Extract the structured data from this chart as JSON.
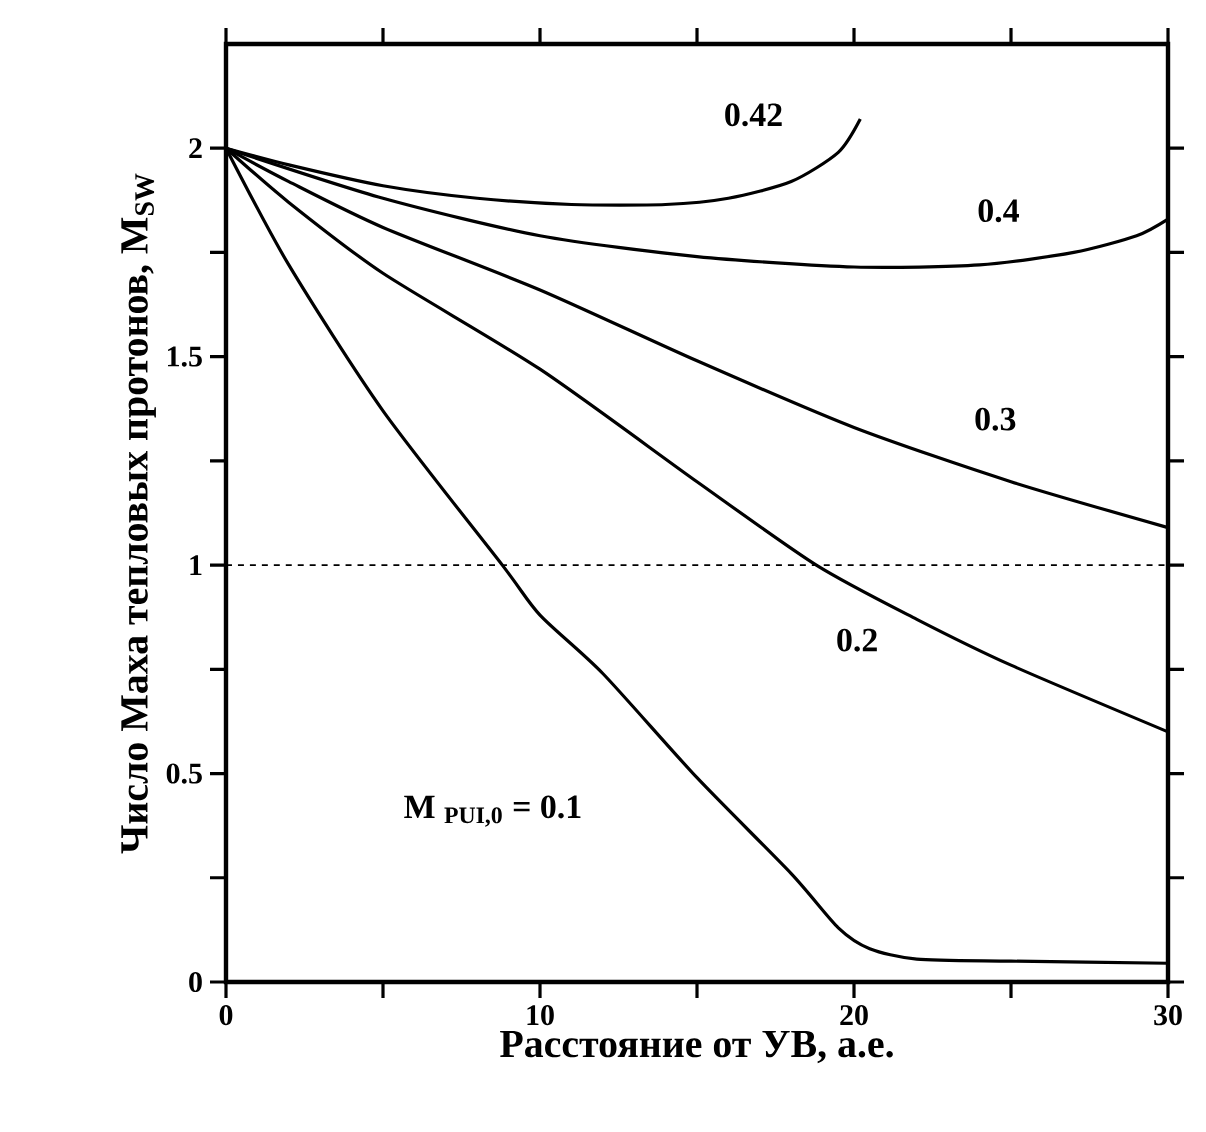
{
  "chart_data": {
    "type": "line",
    "xlabel": "Расстояние от УВ, а.е.",
    "ylabel": "Число Маха тепловых протонов, M$_{SW}$",
    "xlim": [
      0,
      30
    ],
    "ylim": [
      0,
      2.25
    ],
    "xticks": [
      0,
      {
        "value": 5,
        "label": null
      },
      10,
      {
        "value": 15,
        "label": null
      },
      20,
      {
        "value": 25,
        "label": null
      },
      30
    ],
    "yticks": [
      0,
      {
        "value": 0.25,
        "label": null
      },
      0.5,
      {
        "value": 0.75,
        "label": null
      },
      1,
      {
        "value": 1.25,
        "label": null
      },
      1.5,
      {
        "value": 1.75,
        "label": null
      },
      2
    ],
    "marker": "none",
    "line_style": "solid",
    "ref_lines": [
      {
        "axis": "y",
        "value": 1,
        "label": null,
        "line_style": "dashed",
        "color": "#000000"
      }
    ],
    "series": [
      {
        "name": "M $_{PUI,0}$ = 0.1",
        "color": "#000000",
        "x": [
          0,
          2,
          5,
          8.8,
          10,
          12,
          15,
          18,
          19.5,
          20.5,
          22,
          25,
          30
        ],
        "values": [
          2,
          1.72,
          1.37,
          1.0,
          0.88,
          0.74,
          0.49,
          0.26,
          0.13,
          0.08,
          0.055,
          0.05,
          0.045
        ]
      },
      {
        "name": "0.2",
        "color": "#000000",
        "x": [
          0,
          2,
          5,
          10,
          15,
          18.8,
          22,
          25,
          30
        ],
        "values": [
          2,
          1.87,
          1.7,
          1.47,
          1.2,
          1.0,
          0.87,
          0.76,
          0.6
        ]
      },
      {
        "name": "0.3",
        "color": "#000000",
        "x": [
          0,
          2,
          5,
          10,
          15,
          20,
          25,
          30
        ],
        "values": [
          2,
          1.92,
          1.81,
          1.66,
          1.49,
          1.33,
          1.2,
          1.09
        ]
      },
      {
        "name": "0.4",
        "color": "#000000",
        "x": [
          0,
          5,
          10,
          15,
          20,
          24,
          27,
          29,
          30
        ],
        "values": [
          2,
          1.88,
          1.79,
          1.74,
          1.715,
          1.72,
          1.75,
          1.79,
          1.83
        ]
      },
      {
        "name": "0.42",
        "color": "#000000",
        "x": [
          0,
          2,
          5,
          8,
          11,
          14,
          16,
          18,
          19.5,
          20.2
        ],
        "values": [
          2,
          1.96,
          1.91,
          1.88,
          1.865,
          1.865,
          1.88,
          1.92,
          1.99,
          2.07
        ]
      }
    ]
  }
}
